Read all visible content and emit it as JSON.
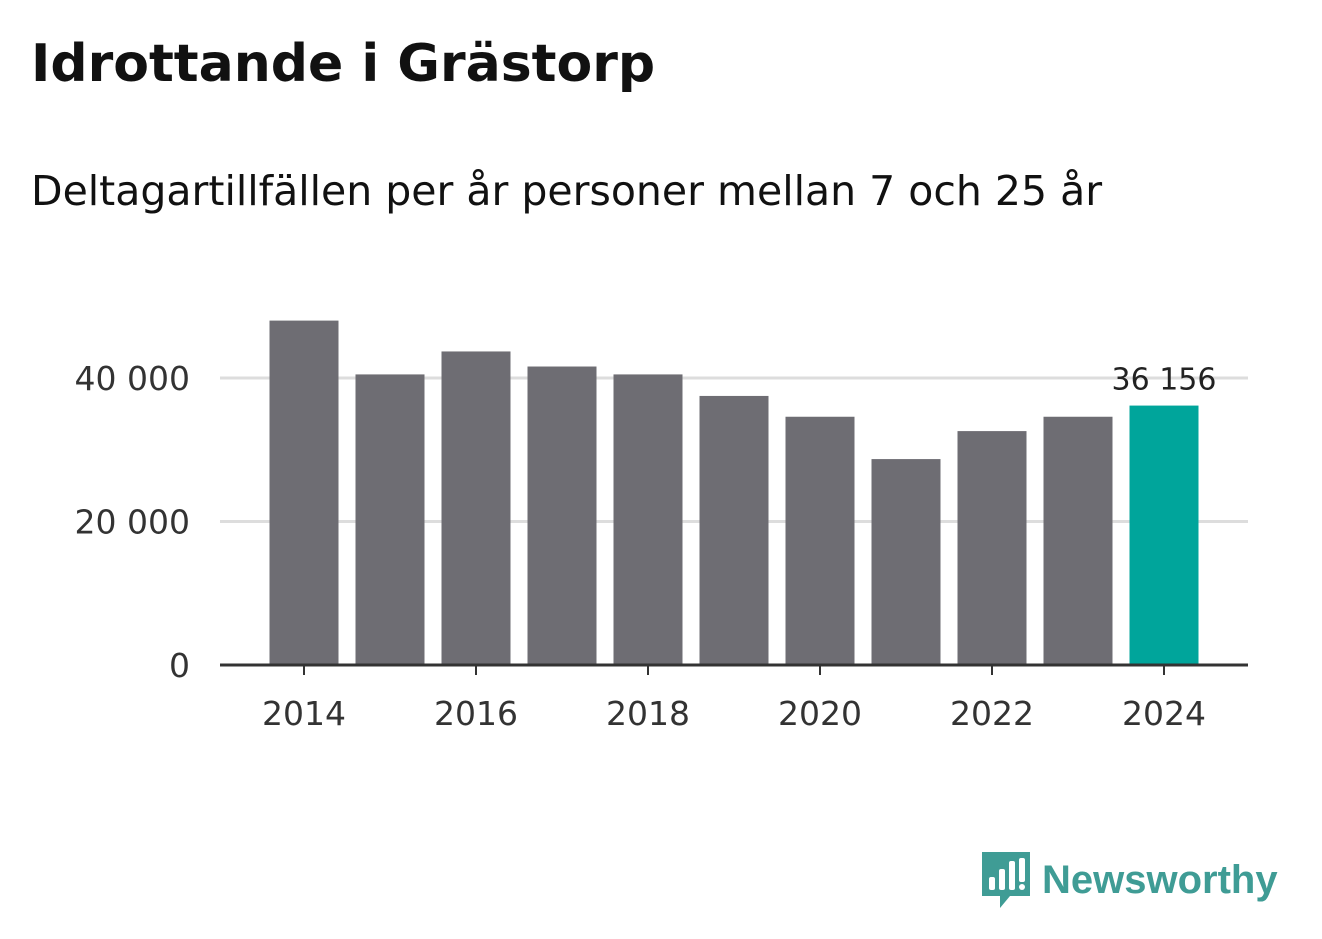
{
  "header": {
    "title": "Idrottande i Grästorp",
    "subtitle": "Deltagartillfällen per år personer mellan 7 och 25 år"
  },
  "brand": {
    "name": "Newsworthy",
    "icon": "newsworthy-bar-icon"
  },
  "colors": {
    "bar": "#6e6d73",
    "highlight": "#00a59b",
    "grid": "#dddddd",
    "axis": "#333333",
    "brand": "#3f9c95"
  },
  "chart_data": {
    "type": "bar",
    "categories": [
      "2014",
      "2015",
      "2016",
      "2017",
      "2018",
      "2019",
      "2020",
      "2021",
      "2022",
      "2023",
      "2024"
    ],
    "values": [
      48000,
      40500,
      43700,
      41600,
      40500,
      37500,
      34600,
      28700,
      32600,
      34600,
      36156
    ],
    "highlight_index": 10,
    "highlight_label": "36 156",
    "x_tick_labels": [
      "2014",
      "2016",
      "2018",
      "2020",
      "2022",
      "2024"
    ],
    "y_ticks": [
      0,
      20000,
      40000
    ],
    "y_tick_labels": [
      "0",
      "20 000",
      "40 000"
    ],
    "ylim": [
      0,
      50000
    ],
    "grid": true
  }
}
